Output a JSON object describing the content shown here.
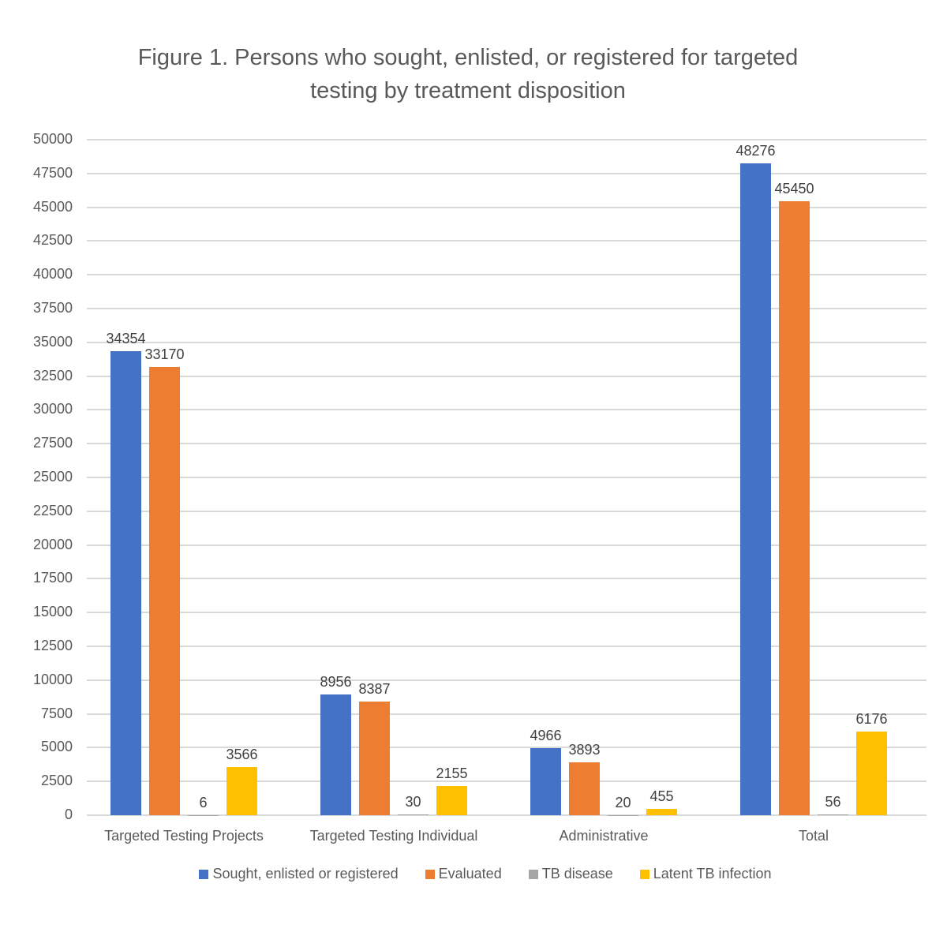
{
  "chart_data": {
    "type": "bar",
    "title": "Figure 1. Persons who sought, enlisted, or registered for targeted testing by treatment disposition",
    "title_lines": [
      "Figure 1. Persons who sought, enlisted, or registered for targeted",
      "testing by treatment disposition"
    ],
    "xlabel": "",
    "ylabel": "",
    "categories": [
      "Targeted Testing Projects",
      "Targeted Testing Individual",
      "Administrative",
      "Total"
    ],
    "series": [
      {
        "name": "Sought, enlisted or registered",
        "color": "#4472C4",
        "values": [
          34354,
          8956,
          4966,
          48276
        ]
      },
      {
        "name": "Evaluated",
        "color": "#ED7D31",
        "values": [
          33170,
          8387,
          3893,
          45450
        ]
      },
      {
        "name": "TB disease",
        "color": "#A5A5A5",
        "values": [
          6,
          30,
          20,
          56
        ]
      },
      {
        "name": "Latent TB infection",
        "color": "#FFC000",
        "values": [
          3566,
          2155,
          455,
          6176
        ]
      }
    ],
    "ylim": [
      0,
      50000
    ],
    "yticks": [
      0,
      2500,
      5000,
      7500,
      10000,
      12500,
      15000,
      17500,
      20000,
      22500,
      25000,
      27500,
      30000,
      32500,
      35000,
      37500,
      40000,
      42500,
      45000,
      47500,
      50000
    ],
    "grid": true,
    "data_labels": true,
    "legend_position": "bottom"
  }
}
